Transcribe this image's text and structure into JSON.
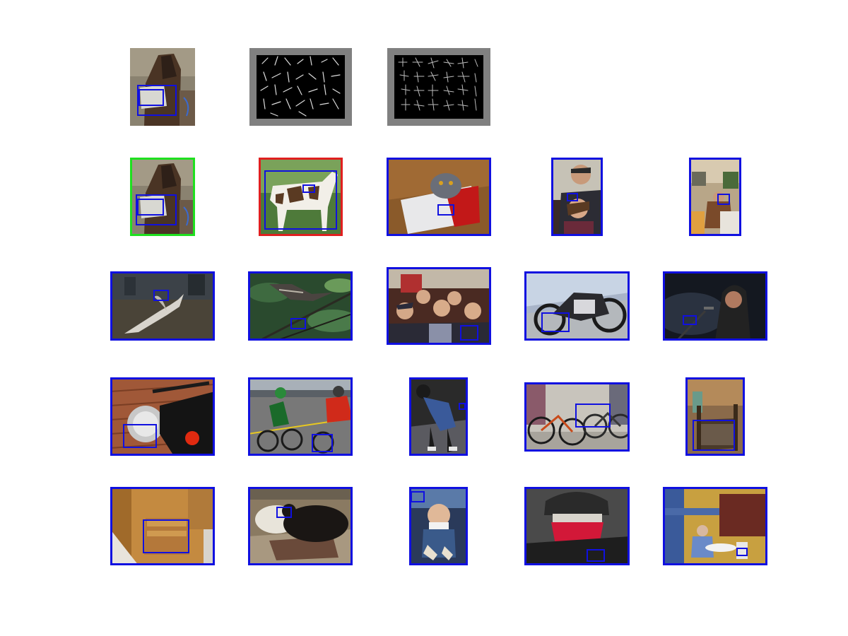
{
  "figure": {
    "frame_colors": {
      "query": "#1fe01f",
      "false_positive": "#e01f1f",
      "retrieved": "#1010e0",
      "bbox": "#1010e0"
    },
    "rows": [
      {
        "row": 1,
        "tiles": [
          {
            "id": "query-source",
            "scene": "horse-with-paper-bag",
            "kind": "photo"
          },
          {
            "id": "hog-template-a",
            "scene": "hog-feature-visualization",
            "kind": "hog"
          },
          {
            "id": "hog-template-b",
            "scene": "hog-feature-visualization",
            "kind": "hog"
          }
        ]
      },
      {
        "row": 2,
        "tiles": [
          {
            "id": "result-1",
            "scene": "horse-with-paper-bag",
            "frame": "query"
          },
          {
            "id": "result-2",
            "scene": "spotted-horse",
            "frame": "false_positive"
          },
          {
            "id": "result-3",
            "scene": "cat-in-cooler",
            "frame": "retrieved"
          },
          {
            "id": "result-4",
            "scene": "man-and-woman",
            "frame": "retrieved"
          },
          {
            "id": "result-5",
            "scene": "person-in-room",
            "frame": "retrieved"
          }
        ]
      },
      {
        "row": 3,
        "tiles": [
          {
            "id": "result-6",
            "scene": "white-bird-flying",
            "frame": "retrieved"
          },
          {
            "id": "result-7",
            "scene": "bird-on-branch",
            "frame": "retrieved"
          },
          {
            "id": "result-8",
            "scene": "group-of-boys",
            "frame": "retrieved"
          },
          {
            "id": "result-9",
            "scene": "motorcycle-on-pavement",
            "frame": "retrieved"
          },
          {
            "id": "result-10",
            "scene": "singer-at-microphone",
            "frame": "retrieved"
          }
        ]
      },
      {
        "row": 4,
        "tiles": [
          {
            "id": "result-11",
            "scene": "motorcycle-headlight",
            "frame": "retrieved"
          },
          {
            "id": "result-12",
            "scene": "cyclists-racing",
            "frame": "retrieved"
          },
          {
            "id": "result-13",
            "scene": "person-bending-over",
            "frame": "retrieved"
          },
          {
            "id": "result-14",
            "scene": "bicycles-in-garage",
            "frame": "retrieved"
          },
          {
            "id": "result-15",
            "scene": "wooden-chair",
            "frame": "retrieved"
          }
        ]
      },
      {
        "row": 5,
        "tiles": [
          {
            "id": "result-16",
            "scene": "wooden-chairs",
            "frame": "retrieved"
          },
          {
            "id": "result-17",
            "scene": "dogs-on-rug",
            "frame": "retrieved"
          },
          {
            "id": "result-18",
            "scene": "baby-in-stroller",
            "frame": "retrieved"
          },
          {
            "id": "result-19",
            "scene": "person-red-mask",
            "frame": "retrieved"
          },
          {
            "id": "result-20",
            "scene": "people-in-cafe",
            "frame": "retrieved"
          }
        ]
      }
    ]
  }
}
